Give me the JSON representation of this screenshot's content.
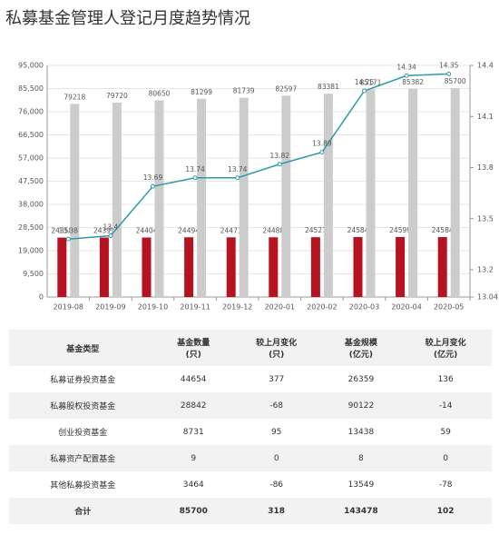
{
  "chart_data": {
    "type": "bar",
    "title": "私募基金管理人登记月度趋势情况",
    "categories": [
      "2019-08",
      "2019-09",
      "2019-10",
      "2019-11",
      "2019-12",
      "2020-01",
      "2020-02",
      "2020-03",
      "2020-04",
      "2020-05"
    ],
    "series": [
      {
        "color": "#b5131f",
        "values": [
          24358,
          24399,
          24404,
          24494,
          24471,
          24488,
          24527,
          24584,
          24599,
          24584
        ]
      },
      {
        "color": "#cccccc",
        "values": [
          79218,
          79720,
          80650,
          81299,
          81739,
          82597,
          83381,
          85171,
          85382,
          85700
        ]
      },
      {
        "type": "line",
        "axis": "y2",
        "color": "#2e9aa8",
        "values": [
          13.38,
          13.4,
          13.69,
          13.74,
          13.74,
          13.82,
          13.89,
          14.25,
          14.34,
          14.35
        ]
      }
    ],
    "ylim": [
      0,
      95000
    ],
    "yticks": [
      0,
      {
        "value": 9500,
        "label": "9,500"
      },
      {
        "value": 19000,
        "label": "19,000"
      },
      {
        "value": 28500,
        "label": "28,500"
      },
      {
        "value": 38000,
        "label": "38,000"
      },
      {
        "value": 47500,
        "label": "47,500"
      },
      {
        "value": 57000,
        "label": "57,000"
      },
      {
        "value": 66500,
        "label": "66,500"
      },
      {
        "value": 76000,
        "label": "76,000"
      },
      {
        "value": 85500,
        "label": "85,500"
      },
      {
        "value": 95000,
        "label": "95,000"
      }
    ],
    "y2lim": [
      13.04,
      14.4
    ],
    "y2ticks": [
      13.04,
      13.2,
      13.5,
      13.8,
      14.1,
      14.4
    ],
    "grid": true
  },
  "table": {
    "header": [
      [
        "基金类型"
      ],
      [
        "基金数量",
        "(只)"
      ],
      [
        "较上月变化",
        "(只)"
      ],
      [
        "基金规模",
        "(亿元)"
      ],
      [
        "较上月变化",
        "(亿元)"
      ]
    ],
    "rows": [
      [
        "私募证券投资基金",
        44654,
        377,
        26359,
        136
      ],
      [
        "私募股权投资基金",
        28842,
        -68,
        90122,
        -14
      ],
      [
        "创业投资基金",
        8731,
        95,
        13438,
        59
      ],
      [
        "私募资产配置基金",
        9,
        0,
        8,
        0
      ],
      [
        "其他私募投资基金",
        3464,
        -86,
        13549,
        -78
      ],
      [
        "合计",
        85700,
        318,
        143478,
        102
      ]
    ]
  }
}
